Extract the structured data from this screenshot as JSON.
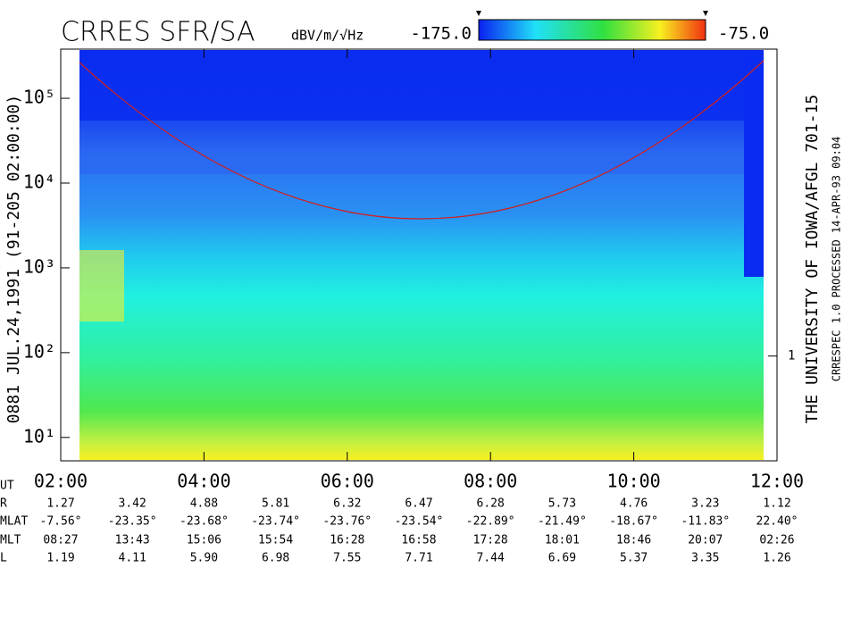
{
  "chart_data": {
    "type": "spectrogram",
    "title": "CRRES SFR/SA",
    "colorbar_label": "dBV/m/√Hz",
    "zlim": [
      -175,
      -75
    ],
    "zticks": [
      {
        "value": -175,
        "label": "-175.0"
      },
      {
        "value": -75,
        "label": "-75.0"
      }
    ],
    "left_label": "0881   JUL.24,1991   (91-205 02:00:00)",
    "right_label": "THE UNIVERSITY OF IOWA/AFGL 701-15",
    "right_sublabel": "CRRESPEC 1.0   PROCESSED 14-APR-93   09:04",
    "yscale": "log",
    "ylim": [
      5.3,
      380000
    ],
    "yticks": [
      {
        "value": 10,
        "label": "10¹"
      },
      {
        "value": 100,
        "label": "10²"
      },
      {
        "value": 1000,
        "label": "10³"
      },
      {
        "value": 10000,
        "label": "10⁴"
      },
      {
        "value": 100000,
        "label": "10⁵"
      }
    ],
    "y2lim": [
      0.055,
      4900
    ],
    "y2ticks": [
      1
    ],
    "xlim": [
      2,
      12
    ],
    "xticks": [
      {
        "value": 2,
        "label": "02:00"
      },
      {
        "value": 4,
        "label": "04:00"
      },
      {
        "value": 6,
        "label": "06:00"
      },
      {
        "value": 8,
        "label": "08:00"
      },
      {
        "value": 10,
        "label": "10:00"
      },
      {
        "value": 12,
        "label": "12:00"
      }
    ],
    "ephemeris": {
      "time_label": "UT",
      "row_labels": [
        "R",
        "MLAT",
        "MLT",
        "L"
      ],
      "rows": [
        [
          "1.27",
          "3.42",
          "4.88",
          "5.81",
          "6.32",
          "6.47",
          "6.28",
          "5.73",
          "4.76",
          "3.23",
          "1.12"
        ],
        [
          "-7.56°",
          "-23.35°",
          "-23.68°",
          "-23.74°",
          "-23.76°",
          "-23.54°",
          "-22.89°",
          "-21.49°",
          "-18.67°",
          "-11.83°",
          "22.40°"
        ],
        [
          "08:27",
          "13:43",
          "15:06",
          "15:54",
          "16:28",
          "16:58",
          "17:28",
          "18:01",
          "18:46",
          "20:07",
          "02:26"
        ],
        [
          "1.19",
          "4.11",
          "5.90",
          "6.98",
          "7.55",
          "7.71",
          "7.44",
          "6.69",
          "5.37",
          "3.35",
          "1.26"
        ]
      ]
    }
  }
}
